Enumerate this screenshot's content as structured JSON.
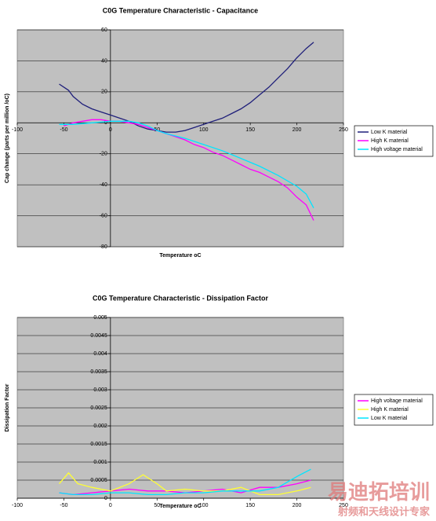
{
  "chart_data": [
    {
      "type": "line",
      "title": "C0G Temperature Characteristic - Capacitance",
      "x_label": "Temperature oC",
      "y_label": "Cap change (parts per million /oC)",
      "xlim": [
        -100,
        250
      ],
      "xticks": [
        -100,
        -50,
        0,
        50,
        100,
        150,
        200,
        250
      ],
      "ylim": [
        -80,
        60
      ],
      "yticks": [
        -80,
        -60,
        -40,
        -20,
        0,
        20,
        40,
        60
      ],
      "grid": true,
      "legend": "right",
      "series": [
        {
          "name": "Low K material",
          "color": "#1f1f7a",
          "x": [
            -55,
            -45,
            -40,
            -30,
            -20,
            -10,
            0,
            10,
            20,
            30,
            40,
            50,
            60,
            70,
            80,
            90,
            100,
            110,
            120,
            130,
            140,
            150,
            160,
            170,
            180,
            190,
            200,
            210,
            218
          ],
          "values": [
            25,
            21,
            17,
            12,
            9,
            7,
            5,
            3,
            1,
            -2,
            -4,
            -5,
            -6,
            -6,
            -5,
            -3,
            -1,
            1,
            3,
            6,
            9,
            13,
            18,
            23,
            29,
            35,
            42,
            48,
            52
          ]
        },
        {
          "name": "High K material",
          "color": "#ff00ff",
          "x": [
            -50,
            -40,
            -30,
            -20,
            -10,
            0,
            10,
            20,
            30,
            40,
            50,
            60,
            70,
            80,
            90,
            100,
            110,
            120,
            130,
            140,
            150,
            160,
            170,
            180,
            190,
            200,
            210,
            218
          ],
          "values": [
            -2,
            0,
            1,
            2,
            2,
            1,
            1,
            0,
            -1,
            -3,
            -5,
            -7,
            -9,
            -11,
            -14,
            -16,
            -19,
            -21,
            -24,
            -27,
            -30,
            -32,
            -35,
            -38,
            -42,
            -48,
            -53,
            -63
          ]
        },
        {
          "name": "High voltage material",
          "color": "#00e5ff",
          "x": [
            -55,
            -40,
            -20,
            0,
            20,
            30,
            40,
            50,
            60,
            80,
            100,
            120,
            140,
            160,
            180,
            200,
            210,
            218
          ],
          "values": [
            -1,
            -1,
            0,
            1,
            1,
            0,
            -2,
            -5,
            -7,
            -10,
            -14,
            -18,
            -23,
            -28,
            -34,
            -41,
            -46,
            -55
          ]
        }
      ]
    },
    {
      "type": "line",
      "title": "C0G Temperature Characteristic - Dissipation Factor",
      "x_label": "Temperature oC",
      "y_label": "Dissipation Factor",
      "xlim": [
        -100,
        250
      ],
      "xticks": [
        -100,
        -50,
        0,
        50,
        100,
        150,
        200,
        250
      ],
      "ylim": [
        0,
        0.005
      ],
      "yticks": [
        0,
        0.0005,
        0.001,
        0.0015,
        0.002,
        0.0025,
        0.003,
        0.0035,
        0.004,
        0.0045,
        0.005
      ],
      "grid": true,
      "legend": "right",
      "series": [
        {
          "name": "High voltage material",
          "color": "#ff00ff",
          "x": [
            -55,
            -40,
            -20,
            0,
            20,
            40,
            60,
            80,
            100,
            120,
            140,
            160,
            180,
            200,
            215
          ],
          "values": [
            0.00015,
            0.0001,
            0.00015,
            0.0002,
            0.00025,
            0.0002,
            0.0002,
            0.00015,
            0.0002,
            0.00025,
            0.00015,
            0.0003,
            0.0003,
            0.0004,
            0.0005
          ]
        },
        {
          "name": "High K material",
          "color": "#ffff33",
          "x": [
            -55,
            -45,
            -35,
            -20,
            0,
            20,
            35,
            50,
            60,
            80,
            100,
            120,
            140,
            160,
            180,
            200,
            215
          ],
          "values": [
            0.0004,
            0.0007,
            0.0004,
            0.0003,
            0.0002,
            0.0004,
            0.00065,
            0.0004,
            0.0002,
            0.00025,
            0.0002,
            0.0002,
            0.0003,
            0.0001,
            0.0001,
            0.0002,
            0.0003
          ]
        },
        {
          "name": "Low K material",
          "color": "#00e5ff",
          "x": [
            -55,
            -40,
            -20,
            0,
            20,
            40,
            60,
            80,
            100,
            120,
            140,
            160,
            180,
            200,
            215
          ],
          "values": [
            0.00015,
            0.0001,
            0.0001,
            0.00015,
            0.00015,
            0.0001,
            0.0001,
            0.00015,
            0.00015,
            0.0002,
            0.0002,
            0.0002,
            0.0003,
            0.0006,
            0.0008
          ]
        }
      ]
    }
  ],
  "watermark": {
    "brand": "易迪拓培训",
    "slogan": "射频和天线设计专家"
  }
}
